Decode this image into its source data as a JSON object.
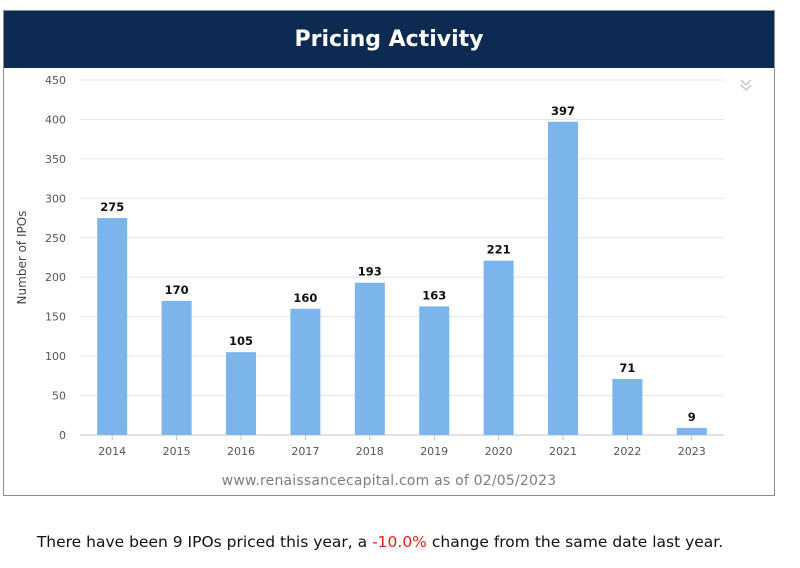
{
  "header": {
    "title": "Pricing Activity"
  },
  "icons": {
    "menu": "double-chevron-down-icon"
  },
  "source_text": "www.renaissancecapital.com as of 02/05/2023",
  "footer": {
    "prefix": "There have been 9 IPOs priced this year, a ",
    "change": "-10.0%",
    "suffix": " change from the same date last year."
  },
  "colors": {
    "header_bg": "#0d2a52",
    "bar": "#7cb5ec",
    "negative": "#e02020"
  },
  "chart_data": {
    "type": "bar",
    "title": "Pricing Activity",
    "xlabel": "",
    "ylabel": "Number of IPOs",
    "categories": [
      "2014",
      "2015",
      "2016",
      "2017",
      "2018",
      "2019",
      "2020",
      "2021",
      "2022",
      "2023"
    ],
    "values": [
      275,
      170,
      105,
      160,
      193,
      163,
      221,
      397,
      71,
      9
    ],
    "ylim": [
      0,
      450
    ],
    "yticks": [
      0,
      50,
      100,
      150,
      200,
      250,
      300,
      350,
      400,
      450
    ],
    "grid": true
  }
}
